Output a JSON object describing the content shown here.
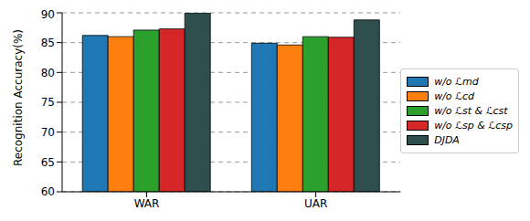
{
  "chart_data": {
    "type": "bar",
    "y_label": "Recognition Accuracy(%)",
    "categories": [
      "WAR",
      "UAR"
    ],
    "series": [
      {
        "name": "w/o ℒmd",
        "color": "#1f77b4",
        "values": [
          86.2,
          84.9
        ]
      },
      {
        "name": "w/o ℒcd",
        "color": "#ff7f0e",
        "values": [
          86.0,
          84.6
        ]
      },
      {
        "name": "w/o ℒst & ℒcst",
        "color": "#2ca02c",
        "values": [
          87.1,
          86.0
        ]
      },
      {
        "name": "w/o ℒsp & ℒcsp",
        "color": "#d62728",
        "values": [
          87.3,
          85.9
        ]
      },
      {
        "name": "DJDA",
        "color": "#2f4f4f",
        "values": [
          90.0,
          88.8
        ]
      }
    ],
    "ylim": [
      60,
      90
    ],
    "yticks": [
      60,
      65,
      70,
      75,
      80,
      85,
      90
    ],
    "grid": true,
    "legend": "right"
  }
}
